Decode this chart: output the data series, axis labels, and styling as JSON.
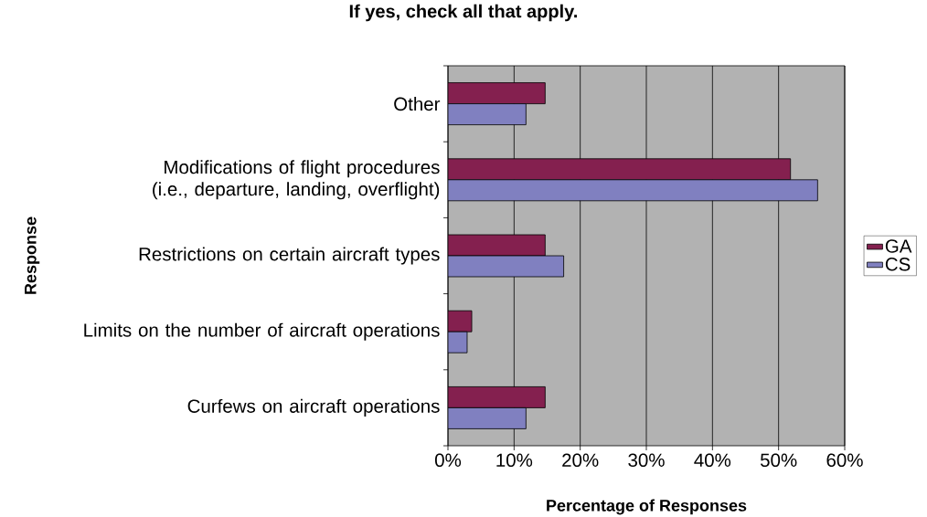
{
  "chart_data": {
    "type": "bar",
    "orientation": "horizontal",
    "title": "If yes, check all that apply.",
    "xlabel": "Percentage of Responses",
    "ylabel": "Response",
    "categories": [
      "Other",
      "Modifications of flight procedures (i.e., departure, landing, overflight)",
      "Restrictions on certain aircraft types",
      "Limits on the number of aircraft operations",
      "Curfews on aircraft operations"
    ],
    "series": [
      {
        "name": "GA",
        "color": "#84204f",
        "values": [
          14.7,
          51.8,
          14.7,
          3.6,
          14.7
        ]
      },
      {
        "name": "CS",
        "color": "#8080c0",
        "values": [
          11.8,
          55.9,
          17.5,
          2.9,
          11.8
        ]
      }
    ],
    "xlim": [
      0,
      60
    ],
    "xticks": [
      {
        "value": 0,
        "label": "0%"
      },
      {
        "value": 10,
        "label": "10%"
      },
      {
        "value": 20,
        "label": "20%"
      },
      {
        "value": 30,
        "label": "30%"
      },
      {
        "value": 40,
        "label": "40%"
      },
      {
        "value": 50,
        "label": "50%"
      },
      {
        "value": 60,
        "label": "60%"
      }
    ],
    "grid": "x",
    "legend": "right"
  }
}
